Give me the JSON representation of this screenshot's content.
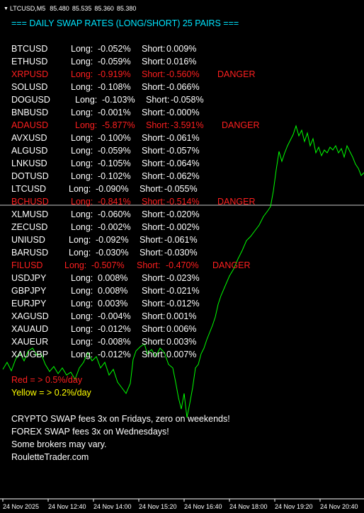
{
  "header": {
    "symbol": "LTCUSD,M5",
    "quotes": [
      "85.480",
      "85.535",
      "85.360",
      "85.380"
    ]
  },
  "title": "=== DAILY SWAP RATES (LONG/SHORT) 25 PAIRS ===",
  "pairs": [
    {
      "symbol": "BTCUSD",
      "long": "-0.052%",
      "short": "0.009%",
      "danger": false
    },
    {
      "symbol": "ETHUSD",
      "long": "-0.059%",
      "short": "0.016%",
      "danger": false
    },
    {
      "symbol": "XRPUSD",
      "long": "-0.919%",
      "short": "-0.560%",
      "danger": true
    },
    {
      "symbol": "SOLUSD",
      "long": "-0.108%",
      "short": "-0.066%",
      "danger": false
    },
    {
      "symbol": "DOGUSD",
      "long": "-0.103%",
      "short": "-0.058%",
      "danger": false
    },
    {
      "symbol": "BNBUSD",
      "long": "-0.001%",
      "short": "-0.000%",
      "danger": false
    },
    {
      "symbol": "ADAUSD",
      "long": "-5.877%",
      "short": "-3.591%",
      "danger": true
    },
    {
      "symbol": "AVXUSD",
      "long": "-0.100%",
      "short": "-0.061%",
      "danger": false
    },
    {
      "symbol": "ALGUSD",
      "long": "-0.059%",
      "short": "-0.057%",
      "danger": false
    },
    {
      "symbol": "LNKUSD",
      "long": "-0.105%",
      "short": "-0.064%",
      "danger": false
    },
    {
      "symbol": "DOTUSD",
      "long": "-0.102%",
      "short": "-0.062%",
      "danger": false
    },
    {
      "symbol": "LTCUSD",
      "long": "-0.090%",
      "short": "-0.055%",
      "danger": false
    },
    {
      "symbol": "BCHUSD",
      "long": "-0.841%",
      "short": "-0.514%",
      "danger": true
    },
    {
      "symbol": "XLMUSD",
      "long": "-0.060%",
      "short": "-0.020%",
      "danger": false
    },
    {
      "symbol": "ZECUSD",
      "long": "-0.002%",
      "short": "-0.002%",
      "danger": false
    },
    {
      "symbol": "UNIUSD",
      "long": "-0.092%",
      "short": "-0.061%",
      "danger": false
    },
    {
      "symbol": "BARUSD",
      "long": "-0.030%",
      "short": "-0.030%",
      "danger": false
    },
    {
      "symbol": "FILUSD",
      "long": "-0.507%",
      "short": "-0.470%",
      "danger": true
    },
    {
      "symbol": "USDJPY",
      "long": "0.008%",
      "short": "-0.023%",
      "danger": false
    },
    {
      "symbol": "GBPJPY",
      "long": "0.008%",
      "short": "-0.021%",
      "danger": false
    },
    {
      "symbol": "EURJPY",
      "long": "0.003%",
      "short": "-0.012%",
      "danger": false
    },
    {
      "symbol": "XAGUSD",
      "long": "-0.004%",
      "short": "0.001%",
      "danger": false
    },
    {
      "symbol": "XAUAUD",
      "long": "-0.012%",
      "short": "0.006%",
      "danger": false
    },
    {
      "symbol": "XAUEUR",
      "long": "-0.008%",
      "short": "0.003%",
      "danger": false
    },
    {
      "symbol": "XAUGBP",
      "long": "-0.012%",
      "short": "0.007%",
      "danger": false
    }
  ],
  "labels": {
    "long": "Long:",
    "short": "Short:",
    "danger": "DANGER"
  },
  "legend": {
    "red": "Red = > 0.5%/day",
    "yellow": "Yellow = > 0.2%/day"
  },
  "notes": [
    "CRYPTO SWAP fees 3x on Fridays, zero on weekends!",
    "FOREX SWAP fees 3x on Wednesdays!",
    "Some brokers may vary.",
    "RouletteTrader.com"
  ],
  "x_axis": [
    "24 Nov 2025",
    "24 Nov 12:40",
    "24 Nov 14:00",
    "24 Nov 15:20",
    "24 Nov 16:40",
    "24 Nov 18:00",
    "24 Nov 19:20",
    "24 Nov 20:40"
  ],
  "colors": {
    "background": "#000000",
    "price_line": "#00ff00",
    "title": "#00e5ff",
    "danger": "#ff1f1f",
    "warning": "#ffff00",
    "text": "#ffffff",
    "crosshair": "#c8c8c8"
  },
  "chart_data": {
    "type": "line",
    "x": [
      "24 Nov 2025",
      "24 Nov 12:40",
      "24 Nov 14:00",
      "24 Nov 15:20",
      "24 Nov 16:40",
      "24 Nov 18:00",
      "24 Nov 19:20",
      "24 Nov 20:40"
    ],
    "series": [
      {
        "values": [
          0.22,
          0.26,
          0.21,
          0.2,
          0.28,
          0.66,
          0.72,
          0.66
        ]
      }
    ],
    "ylim": [
      0,
      1
    ],
    "grid": false
  }
}
